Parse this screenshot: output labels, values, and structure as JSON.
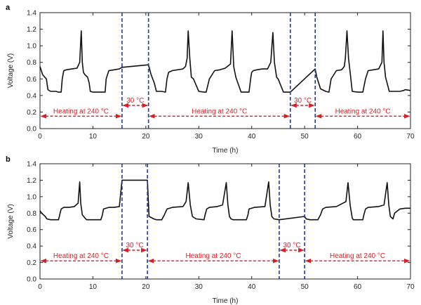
{
  "colors": {
    "trace": "#111111",
    "divider": "#1f3a93",
    "annotation": "#d61f26",
    "axis": "#222222"
  },
  "chart_data": [
    {
      "type": "line",
      "panel_label": "a",
      "xlabel": "Time (h)",
      "ylabel": "Voltage (V)",
      "xlim": [
        0,
        70
      ],
      "ylim": [
        0,
        1.4
      ],
      "xticks": [
        "0",
        "10",
        "20",
        "30",
        "40",
        "50",
        "60",
        "70"
      ],
      "yticks": [
        "0.0",
        "0.2",
        "0.4",
        "0.6",
        "0.8",
        "1.0",
        "1.2",
        "1.4"
      ],
      "dividers": [
        15.5,
        20.5,
        47.3,
        52.0
      ],
      "series": [
        {
          "name": "Voltage",
          "x": [
            0,
            0.5,
            1.2,
            1.5,
            2,
            3,
            3.5,
            4,
            4.2,
            4.5,
            5,
            6,
            7,
            7.5,
            7.8,
            8,
            8.2,
            8.5,
            9,
            9.3,
            9.5,
            10,
            11,
            12,
            12.3,
            12.5,
            13,
            14,
            15,
            15.5,
            20.5,
            21,
            21.6,
            22,
            23,
            23.7,
            24,
            24.3,
            25,
            26,
            27,
            27.5,
            27.8,
            28,
            28.3,
            28.6,
            29,
            30,
            31,
            31.4,
            32,
            33,
            34,
            34.5,
            35,
            36,
            36.3,
            36.6,
            37,
            38,
            39,
            39.5,
            39.8,
            40,
            40.3,
            41,
            42,
            43,
            43.6,
            44,
            44.3,
            44.7,
            45,
            46,
            46.5,
            47.3,
            52.0,
            52.3,
            53,
            54,
            54.6,
            55,
            56,
            57,
            57.5,
            57.7,
            58,
            58.3,
            58.7,
            59,
            60,
            61,
            61.5,
            62,
            63,
            64,
            64.6,
            64.8,
            65,
            65.3,
            66,
            67,
            68,
            68.7,
            69,
            70
          ],
          "y": [
            0.75,
            0.65,
            0.6,
            0.47,
            0.45,
            0.45,
            0.44,
            0.44,
            0.6,
            0.7,
            0.71,
            0.72,
            0.73,
            0.8,
            1.18,
            0.8,
            0.68,
            0.65,
            0.62,
            0.55,
            0.45,
            0.44,
            0.44,
            0.44,
            0.44,
            0.6,
            0.7,
            0.71,
            0.72,
            0.74,
            0.77,
            0.65,
            0.55,
            0.45,
            0.45,
            0.44,
            0.6,
            0.68,
            0.7,
            0.71,
            0.72,
            0.75,
            0.85,
            1.18,
            0.85,
            0.62,
            0.6,
            0.45,
            0.44,
            0.44,
            0.6,
            0.7,
            0.71,
            0.72,
            0.73,
            0.78,
            1.18,
            0.75,
            0.62,
            0.44,
            0.44,
            0.44,
            0.6,
            0.68,
            0.7,
            0.71,
            0.72,
            0.72,
            0.8,
            1.16,
            0.8,
            0.62,
            0.6,
            0.44,
            0.44,
            0.44,
            0.72,
            0.62,
            0.48,
            0.45,
            0.44,
            0.6,
            0.7,
            0.71,
            0.75,
            0.85,
            1.18,
            0.85,
            0.62,
            0.45,
            0.44,
            0.44,
            0.6,
            0.7,
            0.71,
            0.72,
            0.8,
            1.18,
            0.8,
            0.62,
            0.45,
            0.45,
            0.45,
            0.46,
            0.47,
            0.46
          ]
        }
      ],
      "annotations": [
        {
          "text": "Heating at 240 °C",
          "x_start": 0,
          "x_end": 15.5,
          "y": 0.15
        },
        {
          "text": "30 °C",
          "x_start": 15.5,
          "x_end": 20.5,
          "y": 0.28
        },
        {
          "text": "Heating at 240 °C",
          "x_start": 20.5,
          "x_end": 47.3,
          "y": 0.15
        },
        {
          "text": "30 °C",
          "x_start": 47.3,
          "x_end": 52.0,
          "y": 0.28
        },
        {
          "text": "Heating at 240 °C",
          "x_start": 52.0,
          "x_end": 70,
          "y": 0.15
        }
      ]
    },
    {
      "type": "line",
      "panel_label": "b",
      "xlabel": "Time (h)",
      "ylabel": "Voltage (V)",
      "xlim": [
        0,
        70
      ],
      "ylim": [
        0,
        1.4
      ],
      "xticks": [
        "0",
        "10",
        "20",
        "30",
        "40",
        "50",
        "60",
        "70"
      ],
      "yticks": [
        "0.0",
        "0.2",
        "0.4",
        "0.6",
        "0.8",
        "1.0",
        "1.2",
        "1.4"
      ],
      "dividers": [
        15.5,
        20.3,
        45.2,
        50.0
      ],
      "series": [
        {
          "name": "Voltage",
          "x": [
            0,
            0.3,
            1.0,
            1.3,
            2,
            3.5,
            3.8,
            4.0,
            4.5,
            5.5,
            6.5,
            7.2,
            7.5,
            7.7,
            8.0,
            8.5,
            8.8,
            9.1,
            10.5,
            11.5,
            11.8,
            12.0,
            13,
            14,
            15,
            15.5,
            20.3,
            20.6,
            21.5,
            22,
            22.5,
            23,
            23.5,
            24,
            25,
            27,
            27.6,
            28,
            28.4,
            28.8,
            29.5,
            31,
            31.2,
            31.5,
            32,
            33.5,
            34.5,
            35.2,
            35.5,
            35.8,
            36.1,
            36.5,
            38,
            39,
            39.3,
            39.5,
            40.5,
            42.5,
            43.2,
            43.5,
            43.8,
            44.2,
            45.2,
            50.0,
            50.3,
            51,
            52.5,
            53,
            53.4,
            54,
            56,
            57.8,
            58.2,
            58.6,
            59,
            59.2,
            61,
            61.2,
            61.5,
            62,
            64,
            65,
            65.6,
            65.9,
            66.2,
            66.7,
            67,
            68,
            69,
            70
          ],
          "y": [
            0.83,
            0.8,
            0.76,
            0.73,
            0.72,
            0.72,
            0.8,
            0.85,
            0.87,
            0.87,
            0.88,
            0.92,
            1.18,
            0.92,
            0.78,
            0.74,
            0.72,
            0.72,
            0.72,
            0.72,
            0.78,
            0.85,
            0.87,
            0.87,
            0.88,
            1.2,
            1.2,
            0.76,
            0.73,
            0.72,
            0.72,
            0.72,
            0.78,
            0.85,
            0.87,
            0.88,
            0.94,
            1.17,
            0.9,
            0.76,
            0.73,
            0.72,
            0.78,
            0.85,
            0.87,
            0.88,
            0.9,
            1.17,
            0.9,
            0.76,
            0.73,
            0.72,
            0.72,
            0.72,
            0.78,
            0.85,
            0.87,
            0.88,
            1.18,
            0.9,
            0.76,
            0.73,
            0.72,
            0.76,
            0.73,
            0.72,
            0.72,
            0.78,
            0.85,
            0.87,
            0.88,
            0.94,
            1.17,
            0.9,
            0.74,
            0.72,
            0.72,
            0.78,
            0.85,
            0.87,
            0.88,
            0.9,
            1.17,
            0.9,
            0.76,
            0.73,
            0.8,
            0.85,
            0.86,
            0.86
          ]
        }
      ],
      "annotations": [
        {
          "text": "Heating at 240 °C",
          "x_start": 0,
          "x_end": 15.5,
          "y": 0.22
        },
        {
          "text": "30 °C",
          "x_start": 15.5,
          "x_end": 20.3,
          "y": 0.35
        },
        {
          "text": "Heating at 240 °C",
          "x_start": 20.3,
          "x_end": 45.2,
          "y": 0.22
        },
        {
          "text": "30 °C",
          "x_start": 45.2,
          "x_end": 50.0,
          "y": 0.35
        },
        {
          "text": "Heating at 240 °C",
          "x_start": 50.0,
          "x_end": 70,
          "y": 0.22
        }
      ]
    }
  ]
}
